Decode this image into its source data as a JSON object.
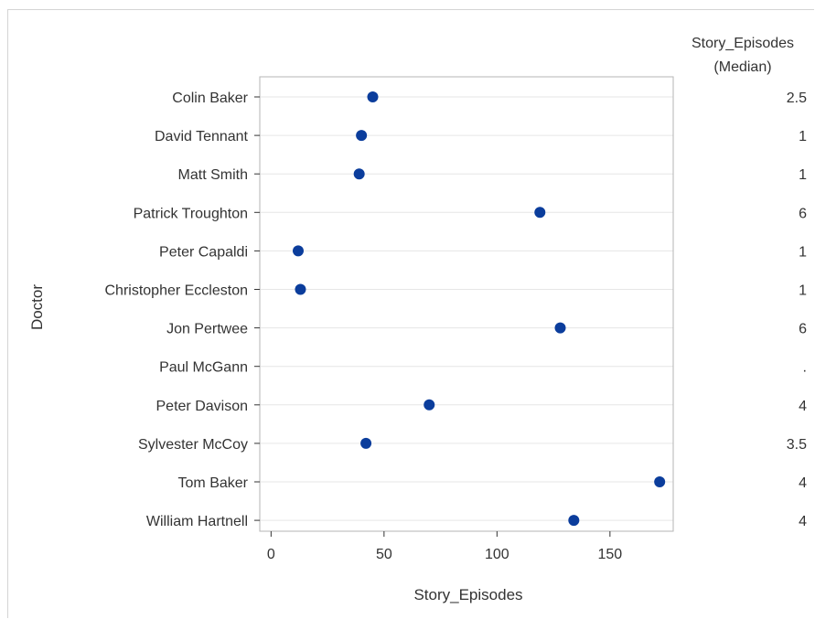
{
  "chart_data": {
    "type": "scatter",
    "xlabel": "Story_Episodes",
    "ylabel": "Doctor",
    "xlim": [
      -5,
      178
    ],
    "xticks": [
      0,
      50,
      100,
      150
    ],
    "grid": "horizontal",
    "marker_color": "#0b3d9c",
    "categories": [
      "Colin Baker",
      "David Tennant",
      "Matt Smith",
      "Patrick Troughton",
      "Peter Capaldi",
      "Christopher Eccleston",
      "Jon Pertwee",
      "Paul McGann",
      "Peter Davison",
      "Sylvester McCoy",
      "Tom Baker",
      "William Hartnell"
    ],
    "values": [
      45,
      40,
      39,
      119,
      12,
      13,
      128,
      null,
      70,
      42,
      172,
      134
    ],
    "table": {
      "header_line1": "Story_Episodes",
      "header_line2": "(Median)",
      "values": [
        "2.5",
        "1",
        "1",
        "6",
        "1",
        "1",
        "6",
        ".",
        "4",
        "3.5",
        "4",
        "4"
      ]
    }
  }
}
